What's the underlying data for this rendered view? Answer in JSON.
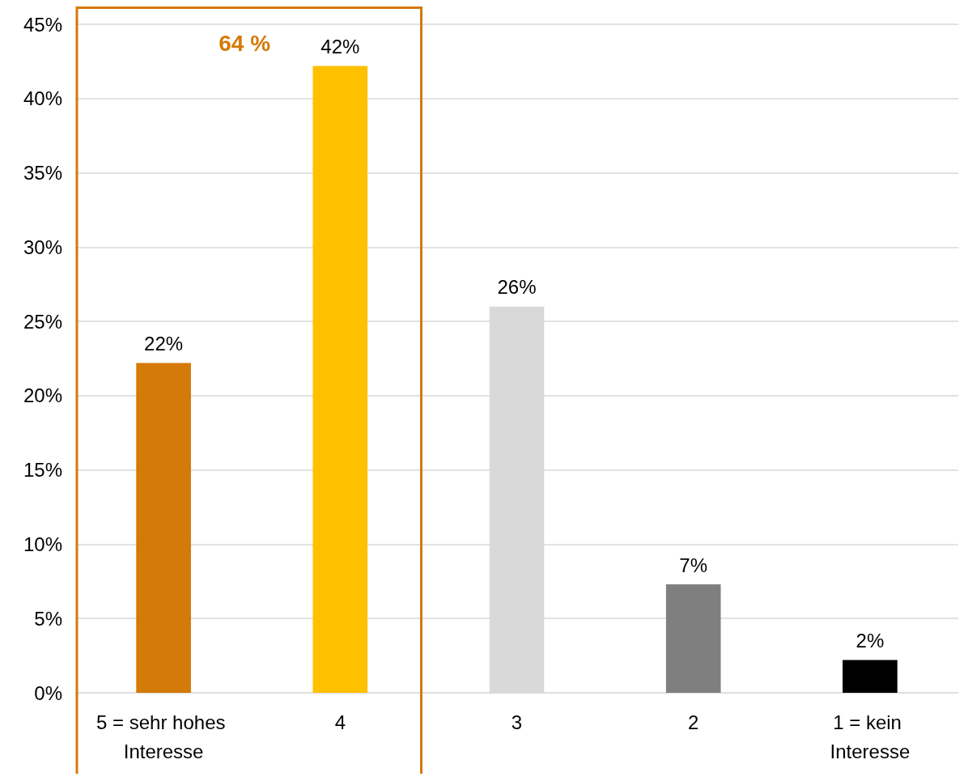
{
  "chart_data": {
    "type": "bar",
    "categories": [
      "5 = sehr hohes Interesse",
      "4",
      "3",
      "2",
      "1 = kein Interesse"
    ],
    "values": [
      22.2,
      42.2,
      26.0,
      7.3,
      2.2
    ],
    "colors": [
      "#d47a08",
      "#ffc000",
      "#d9d9d9",
      "#7f7f7f",
      "#000000"
    ],
    "value_labels": [
      "22%",
      "42%",
      "26%",
      "7%",
      "2%"
    ],
    "ylim": [
      0,
      45
    ],
    "yticks": [
      {
        "value": 0,
        "label": "0%"
      },
      {
        "value": 5,
        "label": "5%"
      },
      {
        "value": 10,
        "label": "10%"
      },
      {
        "value": 15,
        "label": "15%"
      },
      {
        "value": 20,
        "label": "20%"
      },
      {
        "value": 25,
        "label": "25%"
      },
      {
        "value": 30,
        "label": "30%"
      },
      {
        "value": 35,
        "label": "35%"
      },
      {
        "value": 40,
        "label": "40%"
      },
      {
        "value": 45,
        "label": "45%"
      }
    ],
    "annotations": [
      "64 %"
    ],
    "grid": "y"
  }
}
